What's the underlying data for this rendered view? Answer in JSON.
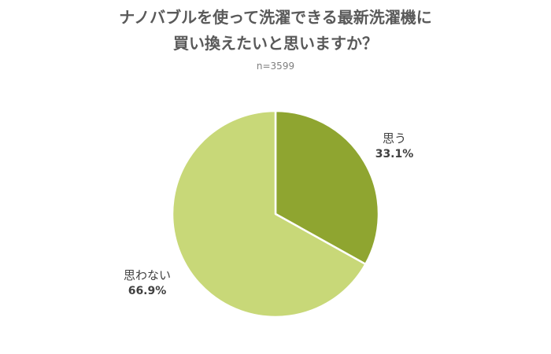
{
  "chart_data": {
    "type": "pie",
    "title_line1": "ナノバブルを使って洗濯できる最新洗濯機に",
    "title_line2": "買い換えたいと思いますか？",
    "subtitle": "n=3599",
    "slices": [
      {
        "label": "思う",
        "value": 33.1,
        "value_label": "33.1%",
        "color": "#8fa530"
      },
      {
        "label": "思わない",
        "value": 66.9,
        "value_label": "66.9%",
        "color": "#c8d878"
      }
    ],
    "start_angle_deg": 0,
    "direction": "clockwise",
    "legend": "none"
  }
}
